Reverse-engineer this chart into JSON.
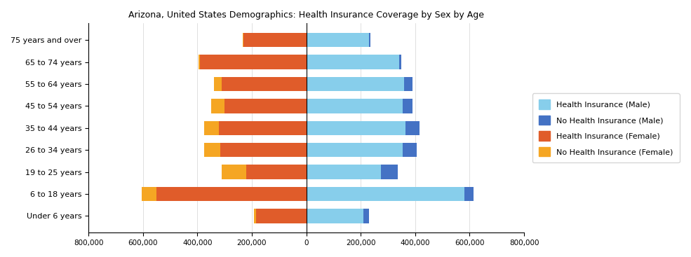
{
  "title": "Arizona, United States Demographics: Health Insurance Coverage by Sex by Age",
  "age_groups": [
    "75 years and over",
    "65 to 74 years",
    "55 to 64 years",
    "45 to 54 years",
    "35 to 44 years",
    "26 to 34 years",
    "19 to 25 years",
    "6 to 18 years",
    "Under 6 years"
  ],
  "health_ins_male": [
    230000,
    340000,
    360000,
    355000,
    365000,
    355000,
    275000,
    580000,
    210000
  ],
  "no_health_ins_male": [
    5000,
    10000,
    30000,
    35000,
    50000,
    50000,
    60000,
    35000,
    20000
  ],
  "health_ins_female": [
    230000,
    390000,
    310000,
    300000,
    320000,
    315000,
    220000,
    550000,
    185000
  ],
  "no_health_ins_female": [
    3000,
    5000,
    30000,
    50000,
    55000,
    60000,
    90000,
    55000,
    8000
  ],
  "color_health_male": "#87CEEB",
  "color_no_health_male": "#4472C4",
  "color_health_female": "#E05C2A",
  "color_no_health_female": "#F5A623",
  "xlim": 800000,
  "legend_labels": [
    "Health Insurance (Male)",
    "No Health Insurance (Male)",
    "Health Insurance (Female)",
    "No Health Insurance (Female)"
  ]
}
